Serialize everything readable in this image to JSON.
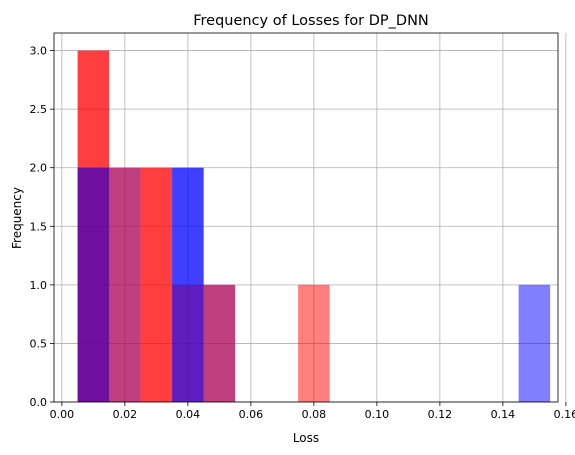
{
  "chart_data": {
    "type": "bar",
    "title": "Frequency of Losses for DP_DNN",
    "xlabel": "Loss",
    "ylabel": "Frequency",
    "xlim": [
      -0.0025,
      0.1575
    ],
    "ylim": [
      0,
      3.15
    ],
    "xticks": [
      "0.00",
      "0.02",
      "0.04",
      "0.06",
      "0.08",
      "0.10",
      "0.12",
      "0.14",
      "0.16"
    ],
    "yticks": [
      "0.0",
      "0.5",
      "1.0",
      "1.5",
      "2.0",
      "2.5",
      "3.0"
    ],
    "grid": true,
    "series": [
      {
        "color": "#0000ff",
        "opacity": 0.5,
        "bins": [
          {
            "x0": 0.005,
            "x1": 0.015,
            "value": 2
          },
          {
            "x0": 0.015,
            "x1": 0.025,
            "value": 2
          },
          {
            "x0": 0.035,
            "x1": 0.045,
            "value": 2
          },
          {
            "x0": 0.045,
            "x1": 0.055,
            "value": 1
          },
          {
            "x0": 0.145,
            "x1": 0.155,
            "value": 1
          }
        ]
      },
      {
        "color": "#ff0000",
        "opacity": 0.5,
        "bins": [
          {
            "x0": 0.005,
            "x1": 0.015,
            "value": 3
          },
          {
            "x0": 0.025,
            "x1": 0.035,
            "value": 2
          },
          {
            "x0": 0.035,
            "x1": 0.045,
            "value": 1
          },
          {
            "x0": 0.045,
            "x1": 0.055,
            "value": 1
          },
          {
            "x0": 0.075,
            "x1": 0.085,
            "value": 1
          }
        ]
      },
      {
        "color": "#ff0000",
        "opacity": 0.5,
        "bins": [
          {
            "x0": 0.005,
            "x1": 0.015,
            "value": 3
          },
          {
            "x0": 0.015,
            "x1": 0.025,
            "value": 2
          },
          {
            "x0": 0.025,
            "x1": 0.035,
            "value": 2
          }
        ]
      },
      {
        "color": "#0000ff",
        "opacity": 0.5,
        "bins": [
          {
            "x0": 0.005,
            "x1": 0.015,
            "value": 2
          },
          {
            "x0": 0.035,
            "x1": 0.045,
            "value": 2
          }
        ]
      }
    ]
  }
}
